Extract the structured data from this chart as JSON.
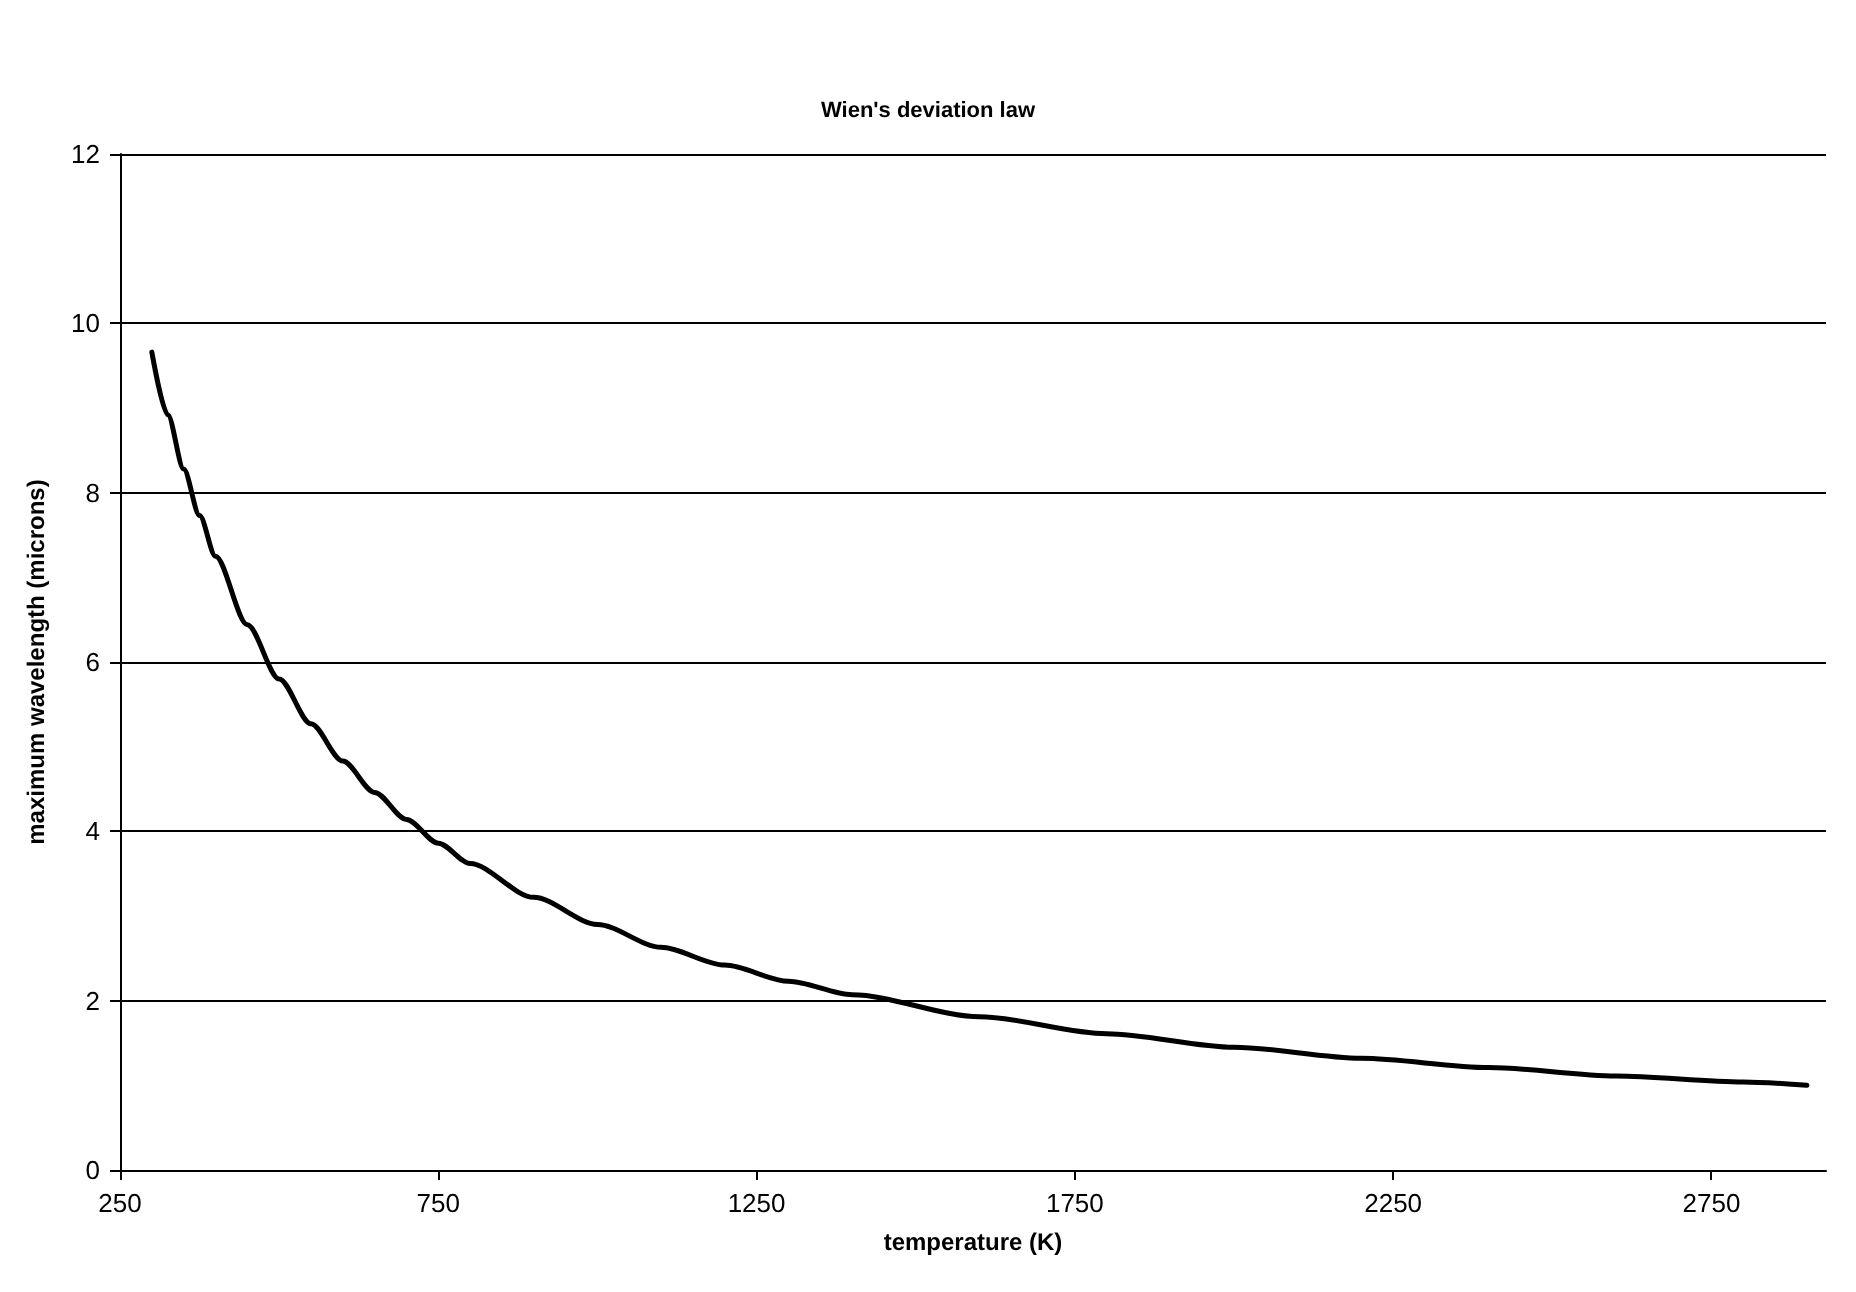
{
  "chart_data": {
    "type": "line",
    "title": "Wien's deviation law",
    "xlabel": "temperature (K)",
    "ylabel": "maximum wavelength (microns)",
    "x": [
      300,
      325,
      350,
      375,
      400,
      450,
      500,
      550,
      600,
      650,
      700,
      750,
      800,
      900,
      1000,
      1100,
      1200,
      1300,
      1400,
      1600,
      1800,
      2000,
      2200,
      2400,
      2600,
      2800,
      2900
    ],
    "series": [
      {
        "color": "#000000",
        "values": [
          9.66,
          8.92,
          8.28,
          7.73,
          7.25,
          6.44,
          5.8,
          5.27,
          4.83,
          4.46,
          4.14,
          3.86,
          3.62,
          3.22,
          2.9,
          2.63,
          2.42,
          2.23,
          2.07,
          1.81,
          1.61,
          1.45,
          1.32,
          1.21,
          1.11,
          1.04,
          1.0
        ]
      }
    ],
    "xlim": [
      250,
      2930
    ],
    "xticks": [
      250,
      750,
      1250,
      1750,
      2250,
      2750
    ],
    "ylim": [
      0,
      12
    ],
    "yticks": [
      0,
      2,
      4,
      6,
      8,
      10,
      12
    ],
    "grid": "y",
    "marker": "none",
    "line_style": "solid"
  }
}
